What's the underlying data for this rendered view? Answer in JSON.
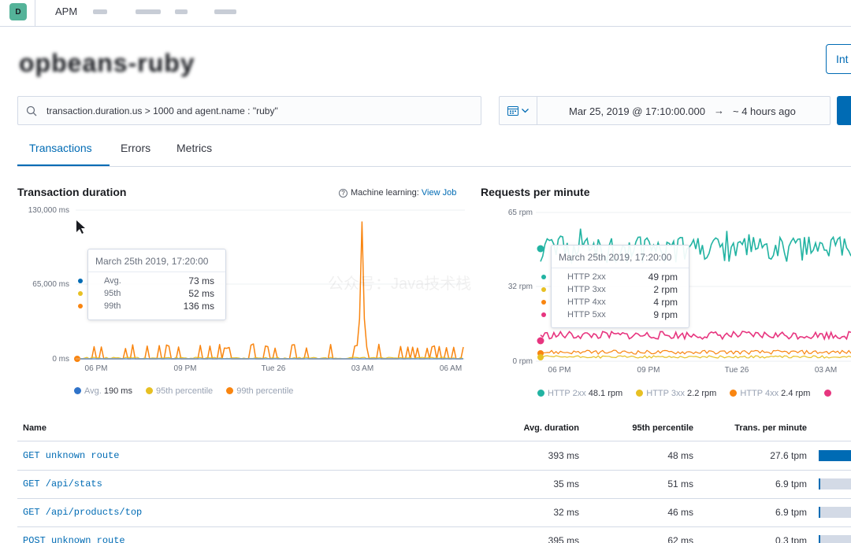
{
  "header": {
    "app_badge": "D",
    "breadcrumb": "APM"
  },
  "page": {
    "title": "opbeans-ruby",
    "integrations_button": "Int"
  },
  "search": {
    "query": "transaction.duration.us > 1000 and agent.name : \"ruby\""
  },
  "date": {
    "start": "Mar 25, 2019 @ 17:10:00.000",
    "arrow": "→",
    "end": "~ 4 hours ago"
  },
  "tabs": [
    {
      "label": "Transactions",
      "active": true
    },
    {
      "label": "Errors",
      "active": false
    },
    {
      "label": "Metrics",
      "active": false
    }
  ],
  "duration_chart": {
    "title": "Transaction duration",
    "ml_label": "Machine learning:",
    "ml_link": "View Job",
    "y_ticks": [
      "130,000 ms",
      "65,000 ms",
      "0 ms"
    ],
    "x_ticks": [
      "06 PM",
      "09 PM",
      "Tue 26",
      "03 AM",
      "06 AM"
    ],
    "tooltip": {
      "title": "March 25th 2019, 17:20:00",
      "rows": [
        {
          "label": "Avg.",
          "value": "73 ms",
          "color": "#006bb4"
        },
        {
          "label": "95th",
          "value": "52 ms",
          "color": "#e7c023"
        },
        {
          "label": "99th",
          "value": "136 ms",
          "color": "#f98510"
        }
      ]
    },
    "legend": [
      {
        "label": "Avg.",
        "value": "190 ms",
        "color": "#3073c9"
      },
      {
        "label": "95th percentile",
        "value": "",
        "color": "#e7c023"
      },
      {
        "label": "99th percentile",
        "value": "",
        "color": "#f98510"
      }
    ]
  },
  "rpm_chart": {
    "title": "Requests per minute",
    "y_ticks": [
      "65 rpm",
      "32 rpm",
      "0 rpm"
    ],
    "x_ticks": [
      "06 PM",
      "09 PM",
      "Tue 26",
      "03 AM"
    ],
    "tooltip": {
      "title": "March 25th 2019, 17:20:00",
      "rows": [
        {
          "label": "HTTP 2xx",
          "value": "49 rpm",
          "color": "#22b3a2"
        },
        {
          "label": "HTTP 3xx",
          "value": "2 rpm",
          "color": "#e7c023"
        },
        {
          "label": "HTTP 4xx",
          "value": "4 rpm",
          "color": "#f98510"
        },
        {
          "label": "HTTP 5xx",
          "value": "9 rpm",
          "color": "#e7357f"
        }
      ]
    },
    "legend": [
      {
        "label": "HTTP 2xx",
        "value": "48.1 rpm",
        "color": "#22b3a2"
      },
      {
        "label": "HTTP 3xx",
        "value": "2.2 rpm",
        "color": "#e7c023"
      },
      {
        "label": "HTTP 4xx",
        "value": "2.4 rpm",
        "color": "#f98510"
      }
    ]
  },
  "watermark": "公众号：Java技术栈",
  "table": {
    "headers": {
      "name": "Name",
      "avg": "Avg. duration",
      "p95": "95th percentile",
      "tpm": "Trans. per minute"
    },
    "rows": [
      {
        "name": "GET unknown route",
        "avg": "393 ms",
        "p95": "48 ms",
        "tpm": "27.6 tpm",
        "impact": 1.0
      },
      {
        "name": "GET /api/stats",
        "avg": "35 ms",
        "p95": "51 ms",
        "tpm": "6.9 tpm",
        "impact": 0.04
      },
      {
        "name": "GET /api/products/top",
        "avg": "32 ms",
        "p95": "46 ms",
        "tpm": "6.9 tpm",
        "impact": 0.04
      },
      {
        "name": "POST unknown route",
        "avg": "395 ms",
        "p95": "62 ms",
        "tpm": "0.3 tpm",
        "impact": 0.04
      }
    ]
  }
}
